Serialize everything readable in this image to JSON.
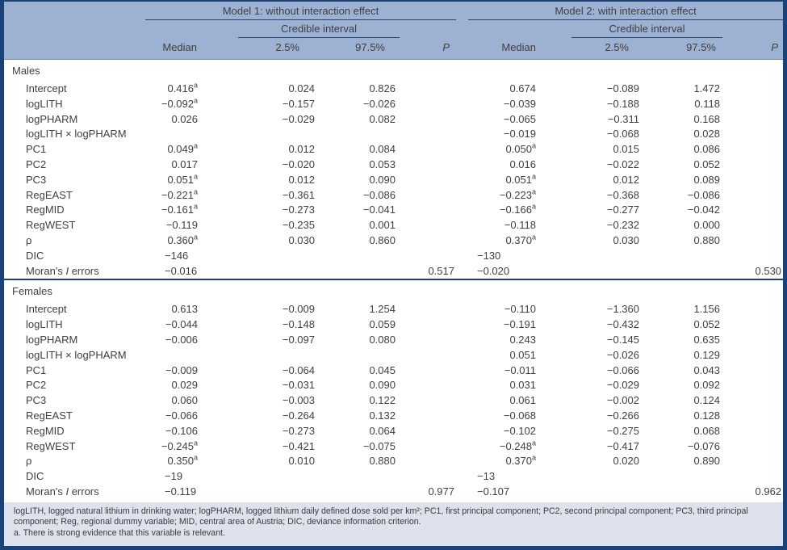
{
  "page": {
    "header_bg": "#9db1d2",
    "border_color": "#1b4179",
    "footer_bg": "#dde2ed",
    "rule_color": "#2b4269"
  },
  "header": {
    "model1_title": "Model 1: without interaction effect",
    "model2_title": "Model 2: with interaction effect",
    "credible_interval_label": "Credible interval",
    "columns": {
      "median": "Median",
      "lo": "2.5%",
      "hi": "97.5%",
      "p": "P"
    }
  },
  "sections": [
    {
      "group": "Males",
      "rows": [
        {
          "label": [
            {
              "t": "Intercept"
            }
          ],
          "m1": [
            {
              "v": "0.416",
              "sup": "a"
            },
            "0.024",
            "0.826",
            ""
          ],
          "m2": [
            "0.674",
            "−0.089",
            "1.472",
            ""
          ]
        },
        {
          "label": [
            {
              "t": "logLITH"
            }
          ],
          "m1": [
            {
              "v": "−0.092",
              "sup": "a"
            },
            "−0.157",
            "−0.026",
            ""
          ],
          "m2": [
            "−0.039",
            "−0.188",
            "0.118",
            ""
          ]
        },
        {
          "label": [
            {
              "t": "logPHARM"
            }
          ],
          "m1": [
            "0.026",
            "−0.029",
            "0.082",
            ""
          ],
          "m2": [
            "−0.065",
            "−0.311",
            "0.168",
            ""
          ]
        },
        {
          "label": [
            {
              "t": "logLITH × logPHARM"
            }
          ],
          "m1": [
            "",
            "",
            "",
            ""
          ],
          "m2": [
            "−0.019",
            "−0.068",
            "0.028",
            ""
          ]
        },
        {
          "label": [
            {
              "t": "PC1"
            }
          ],
          "m1": [
            {
              "v": "0.049",
              "sup": "a"
            },
            "0.012",
            "0.084",
            ""
          ],
          "m2": [
            {
              "v": "0.050",
              "sup": "a"
            },
            "0.015",
            "0.086",
            ""
          ]
        },
        {
          "label": [
            {
              "t": "PC2"
            }
          ],
          "m1": [
            "0.017",
            "−0.020",
            "0.053",
            ""
          ],
          "m2": [
            "0.016",
            "−0.022",
            "0.052",
            ""
          ]
        },
        {
          "label": [
            {
              "t": "PC3"
            }
          ],
          "m1": [
            {
              "v": "0.051",
              "sup": "a"
            },
            "0.012",
            "0.090",
            ""
          ],
          "m2": [
            {
              "v": "0.051",
              "sup": "a"
            },
            "0.012",
            "0.089",
            ""
          ]
        },
        {
          "label": [
            {
              "t": "RegEAST"
            }
          ],
          "m1": [
            {
              "v": "−0.221",
              "sup": "a"
            },
            "−0.361",
            "−0.086",
            ""
          ],
          "m2": [
            {
              "v": "−0.223",
              "sup": "a"
            },
            "−0.368",
            "−0.086",
            ""
          ]
        },
        {
          "label": [
            {
              "t": "RegMID"
            }
          ],
          "m1": [
            {
              "v": "−0.161",
              "sup": "a"
            },
            "−0.273",
            "−0.041",
            ""
          ],
          "m2": [
            {
              "v": "−0.166",
              "sup": "a"
            },
            "−0.277",
            "−0.042",
            ""
          ]
        },
        {
          "label": [
            {
              "t": "RegWEST"
            }
          ],
          "m1": [
            "−0.119",
            "−0.235",
            "0.001",
            ""
          ],
          "m2": [
            "−0.118",
            "−0.232",
            "0.000",
            ""
          ]
        },
        {
          "label": [
            {
              "t": "ρ"
            }
          ],
          "m1": [
            {
              "v": "0.360",
              "sup": "a"
            },
            "0.030",
            "0.860",
            ""
          ],
          "m2": [
            {
              "v": "0.370",
              "sup": "a"
            },
            "0.030",
            "0.880",
            ""
          ]
        },
        {
          "label": [
            {
              "t": "DIC"
            }
          ],
          "m1": [
            "−146",
            "",
            "",
            ""
          ],
          "m2": [
            "−130",
            "",
            "",
            ""
          ]
        },
        {
          "label": [
            {
              "t": "Moran's "
            },
            {
              "t": "I",
              "i": true
            },
            {
              "t": " errors"
            }
          ],
          "m1": [
            "−0.016",
            "",
            "",
            "0.517"
          ],
          "m2": [
            "−0.020",
            "",
            "",
            "0.530"
          ]
        }
      ]
    },
    {
      "group": "Females",
      "rows": [
        {
          "label": [
            {
              "t": "Intercept"
            }
          ],
          "m1": [
            "0.613",
            "−0.009",
            "1.254",
            ""
          ],
          "m2": [
            "−0.110",
            "−1.360",
            "1.156",
            ""
          ]
        },
        {
          "label": [
            {
              "t": "logLITH"
            }
          ],
          "m1": [
            "−0.044",
            "−0.148",
            "0.059",
            ""
          ],
          "m2": [
            "−0.191",
            "−0.432",
            "0.052",
            ""
          ]
        },
        {
          "label": [
            {
              "t": "logPHARM"
            }
          ],
          "m1": [
            "−0.006",
            "−0.097",
            "0.080",
            ""
          ],
          "m2": [
            "0.243",
            "−0.145",
            "0.635",
            ""
          ]
        },
        {
          "label": [
            {
              "t": "logLITH × logPHARM"
            }
          ],
          "m1": [
            "",
            "",
            "",
            ""
          ],
          "m2": [
            "0.051",
            "−0.026",
            "0.129",
            ""
          ]
        },
        {
          "label": [
            {
              "t": "PC1"
            }
          ],
          "m1": [
            "−0.009",
            "−0.064",
            "0.045",
            ""
          ],
          "m2": [
            "−0.011",
            "−0.066",
            "0.043",
            ""
          ]
        },
        {
          "label": [
            {
              "t": "PC2"
            }
          ],
          "m1": [
            "0.029",
            "−0.031",
            "0.090",
            ""
          ],
          "m2": [
            "0.031",
            "−0.029",
            "0.092",
            ""
          ]
        },
        {
          "label": [
            {
              "t": "PC3"
            }
          ],
          "m1": [
            "0.060",
            "−0.003",
            "0.122",
            ""
          ],
          "m2": [
            "0.061",
            "−0.002",
            "0.124",
            ""
          ]
        },
        {
          "label": [
            {
              "t": "RegEAST"
            }
          ],
          "m1": [
            "−0.066",
            "−0.264",
            "0.132",
            ""
          ],
          "m2": [
            "−0.068",
            "−0.266",
            "0.128",
            ""
          ]
        },
        {
          "label": [
            {
              "t": "RegMID"
            }
          ],
          "m1": [
            "−0.106",
            "−0.273",
            "0.064",
            ""
          ],
          "m2": [
            "−0.102",
            "−0.275",
            "0.068",
            ""
          ]
        },
        {
          "label": [
            {
              "t": "RegWEST"
            }
          ],
          "m1": [
            {
              "v": "−0.245",
              "sup": "a"
            },
            "−0.421",
            "−0.075",
            ""
          ],
          "m2": [
            {
              "v": "−0.248",
              "sup": "a"
            },
            "−0.417",
            "−0.076",
            ""
          ]
        },
        {
          "label": [
            {
              "t": "ρ"
            }
          ],
          "m1": [
            {
              "v": "0.350",
              "sup": "a"
            },
            "0.010",
            "0.880",
            ""
          ],
          "m2": [
            {
              "v": "0.370",
              "sup": "a"
            },
            "0.020",
            "0.890",
            ""
          ]
        },
        {
          "label": [
            {
              "t": "DIC"
            }
          ],
          "m1": [
            "−19",
            "",
            "",
            ""
          ],
          "m2": [
            "−13",
            "",
            "",
            ""
          ]
        },
        {
          "label": [
            {
              "t": "Moran's "
            },
            {
              "t": "I",
              "i": true
            },
            {
              "t": " errors"
            }
          ],
          "m1": [
            "−0.119",
            "",
            "",
            "0.977"
          ],
          "m2": [
            "−0.107",
            "",
            "",
            "0.962"
          ]
        }
      ]
    }
  ],
  "footnotes": {
    "abbreviations": "logLITH, logged natural lithium in drinking water; logPHARM, logged lithium daily defined dose sold per km²; PC1, first principal component; PC2, second principal component; PC3, third principal component; Reg, regional dummy variable; MID, central area of Austria; DIC, deviance information criterion.",
    "note_a": "a. There is strong evidence that this variable is relevant."
  }
}
